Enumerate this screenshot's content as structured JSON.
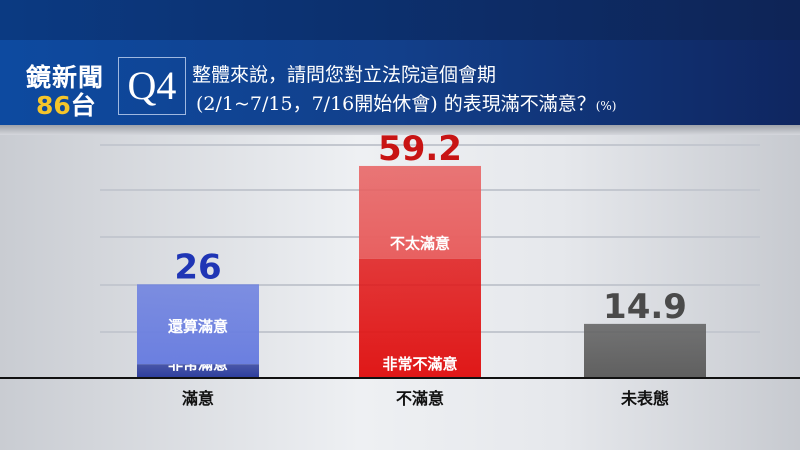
{
  "header": {
    "logo_line1": "鏡新聞",
    "logo_num": "86",
    "logo_tai": "台",
    "question_number": "Q4",
    "question_line1": "整體來說，請問您對立法院這個會期",
    "question_line2": "(2/1~7/15，7/16開始休會) 的表現滿不滿意？",
    "unit": "(%)"
  },
  "chart_data": {
    "type": "bar",
    "stacked": true,
    "categories": [
      "滿意",
      "不滿意",
      "未表態"
    ],
    "values": [
      26,
      59.2,
      14.9
    ],
    "value_labels": [
      "26",
      "59.2",
      "14.9"
    ],
    "segments": [
      [
        {
          "label": "非常滿意",
          "value": 3.6,
          "color": "#2f3f9e"
        },
        {
          "label": "還算滿意",
          "value": 22.4,
          "color": "#6b7fe0"
        }
      ],
      [
        {
          "label": "非常不滿意",
          "value": 33.2,
          "color": "#e01818"
        },
        {
          "label": "不太滿意",
          "value": 26.0,
          "color": "#e86060"
        }
      ],
      [
        {
          "label": "",
          "value": 14.9,
          "color": "#606060"
        }
      ]
    ],
    "value_colors": [
      "#1f35b5",
      "#c81414",
      "#4a4a4a"
    ],
    "ylim": [
      0,
      65
    ],
    "grid": true
  }
}
